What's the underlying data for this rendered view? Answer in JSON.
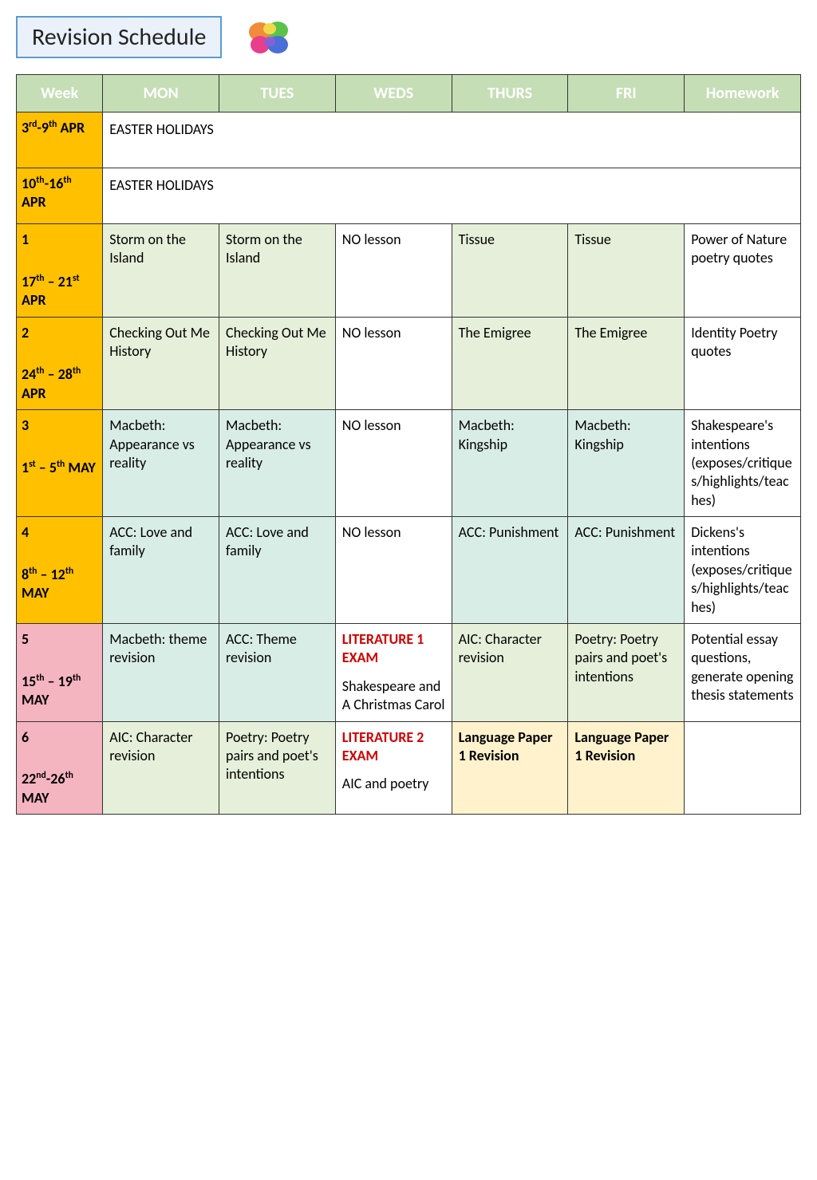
{
  "title": "Revision Schedule",
  "colors": {
    "title_border": "#5b9bd5",
    "title_bg": "#eaf1fa",
    "week_bg": "#ffc000",
    "week56_bg": "#f4b4c0",
    "header_bg_week": "#c5deb5",
    "header_bg_mon": "#c5deb5",
    "header_bg_tues": "#c5deb5",
    "header_bg_weds": "#c5deb5",
    "header_bg_thurs": "#c5deb5",
    "header_bg_fri": "#c5deb5",
    "header_bg_hw": "#c5deb5",
    "header_text": "#ffffff",
    "cell_green1": "#e6efd9",
    "cell_green2": "#e2f0d9",
    "cell_teal": "#d9ede7",
    "cell_yellow": "#fff2cc",
    "cell_white": "#ffffff",
    "exam_red": "#d00000",
    "border": "#333333"
  },
  "headers": {
    "week": "Week",
    "mon": "MON",
    "tues": "TUES",
    "weds": "WEDS",
    "thurs": "THURS",
    "fri": "FRI",
    "hw": "Homework"
  },
  "rows": [
    {
      "week_html": "3<sup>rd</sup>-9<sup>th</sup> APR",
      "week_bg": "#ffc000",
      "span": {
        "text": "EASTER HOLIDAYS",
        "bg": "#ffffff"
      }
    },
    {
      "week_html": "10<sup>th</sup>-16<sup>th</sup> APR",
      "week_bg": "#ffc000",
      "span": {
        "text": "EASTER HOLIDAYS",
        "bg": "#ffffff"
      }
    },
    {
      "week_num": "1",
      "week_html": "17<sup>th</sup> – 21<sup>st</sup> APR",
      "week_bg": "#ffc000",
      "cells": [
        {
          "text": "Storm on the Island",
          "bg": "#e6efd9"
        },
        {
          "text": "Storm on the Island",
          "bg": "#e6efd9"
        },
        {
          "text": "NO lesson",
          "bg": "#ffffff"
        },
        {
          "text": "Tissue",
          "bg": "#e6efd9"
        },
        {
          "text": "Tissue",
          "bg": "#e6efd9"
        },
        {
          "text": "Power of Nature poetry quotes",
          "bg": "#ffffff"
        }
      ]
    },
    {
      "week_num": "2",
      "week_html": "24<sup>th</sup> – 28<sup>th</sup> APR",
      "week_bg": "#ffc000",
      "cells": [
        {
          "text": "Checking Out Me History",
          "bg": "#e6efd9"
        },
        {
          "text": "Checking Out Me History",
          "bg": "#e6efd9"
        },
        {
          "text": "NO lesson",
          "bg": "#ffffff"
        },
        {
          "text": "The Emigree",
          "bg": "#e6efd9"
        },
        {
          "text": "The Emigree",
          "bg": "#e6efd9"
        },
        {
          "text": "Identity Poetry quotes",
          "bg": "#ffffff"
        }
      ]
    },
    {
      "week_num": "3",
      "week_html": "1<sup>st</sup> – 5<sup>th</sup> MAY",
      "week_bg": "#ffc000",
      "cells": [
        {
          "text": "Macbeth: Appearance vs reality",
          "bg": "#d9ede7"
        },
        {
          "text": "Macbeth: Appearance vs reality",
          "bg": "#d9ede7"
        },
        {
          "text": "NO lesson",
          "bg": "#ffffff"
        },
        {
          "text": "Macbeth: Kingship",
          "bg": "#d9ede7"
        },
        {
          "text": "Macbeth: Kingship",
          "bg": "#d9ede7"
        },
        {
          "text": "Shakespeare's intentions (exposes/critiques/highlights/teaches)",
          "bg": "#ffffff"
        }
      ]
    },
    {
      "week_num": "4",
      "week_html": "8<sup>th</sup> – 12<sup>th</sup> MAY",
      "week_bg": "#ffc000",
      "cells": [
        {
          "text": "ACC: Love and family",
          "bg": "#d9ede7"
        },
        {
          "text": "ACC: Love and family",
          "bg": "#d9ede7"
        },
        {
          "text": "NO lesson",
          "bg": "#ffffff"
        },
        {
          "text": "ACC: Punishment",
          "bg": "#d9ede7"
        },
        {
          "text": "ACC: Punishment",
          "bg": "#d9ede7"
        },
        {
          "text": "Dickens's intentions (exposes/critiques/highlights/teaches)",
          "bg": "#ffffff"
        }
      ]
    },
    {
      "week_num": "5",
      "week_html": "15<sup>th</sup> – 19<sup>th</sup> MAY",
      "week_bg": "#f4b4c0",
      "cells": [
        {
          "text": "Macbeth: theme revision",
          "bg": "#d9ede7"
        },
        {
          "text": "ACC: Theme revision",
          "bg": "#d9ede7"
        },
        {
          "exam": "LITERATURE 1 EXAM",
          "text": "Shakespeare and A Christmas Carol",
          "bg": "#ffffff"
        },
        {
          "text": "AIC: Character revision",
          "bg": "#e6efd9"
        },
        {
          "text": "Poetry: Poetry pairs and poet's intentions",
          "bg": "#e6efd9"
        },
        {
          "text": "Potential essay questions, generate opening thesis statements",
          "bg": "#ffffff"
        }
      ]
    },
    {
      "week_num": "6",
      "week_html": "22<sup>nd</sup>-26<sup>th</sup> MAY",
      "week_bg": "#f4b4c0",
      "cells": [
        {
          "text": "AIC: Character revision",
          "bg": "#e6efd9"
        },
        {
          "text": "Poetry: Poetry pairs and poet's intentions",
          "bg": "#e6efd9"
        },
        {
          "exam": "LITERATURE 2 EXAM",
          "text": "AIC and poetry",
          "bg": "#ffffff"
        },
        {
          "text": "Language Paper 1 Revision",
          "bg": "#fff2cc",
          "bold": true
        },
        {
          "text": "Language Paper 1 Revision",
          "bg": "#fff2cc",
          "bold": true
        },
        {
          "text": "",
          "bg": "#ffffff"
        }
      ]
    }
  ]
}
